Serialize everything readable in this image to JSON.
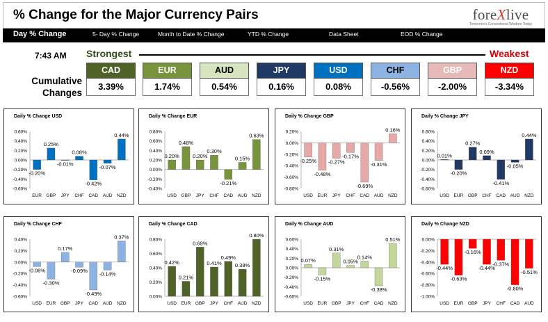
{
  "header": {
    "title": "% Change for the Major Currency Pairs",
    "logo_text_a": "fore",
    "logo_text_x": "X",
    "logo_text_b": "live",
    "logo_tagline": "Tomorrow's Conventional Wisdom Today"
  },
  "nav": {
    "items": [
      "Day % Change",
      "5- Day % Change",
      "Month to Date % Change",
      "YTD % Change",
      "Data Sheet",
      "EOD % Change"
    ]
  },
  "summary": {
    "time": "7:43 AM",
    "strongest_label": "Strongest",
    "weakest_label": "Weakest",
    "cumulative_label": "Cumulative Changes",
    "currencies": [
      {
        "code": "CAD",
        "value": "3.39%",
        "color": "#4f6228",
        "text_color": "#ffffff"
      },
      {
        "code": "EUR",
        "value": "1.74%",
        "color": "#77933c",
        "text_color": "#ffffff"
      },
      {
        "code": "AUD",
        "value": "0.54%",
        "color": "#d7e4bd",
        "text_color": "#000000"
      },
      {
        "code": "JPY",
        "value": "0.16%",
        "color": "#1f3864",
        "text_color": "#ffffff"
      },
      {
        "code": "USD",
        "value": "0.08%",
        "color": "#0070c0",
        "text_color": "#ffffff"
      },
      {
        "code": "CHF",
        "value": "-0.56%",
        "color": "#8db3e2",
        "text_color": "#000000"
      },
      {
        "code": "GBP",
        "value": "-2.00%",
        "color": "#e6b9b8",
        "text_color": "#ffffff"
      },
      {
        "code": "NZD",
        "value": "-3.34%",
        "color": "#ff0000",
        "text_color": "#ffffff"
      }
    ]
  },
  "chart_data": [
    {
      "type": "bar",
      "title": "Daily % Change USD",
      "color": "#0070c0",
      "categories": [
        "EUR",
        "GBP",
        "JPY",
        "CHF",
        "CAD",
        "AUD",
        "NZD"
      ],
      "values": [
        -0.2,
        0.25,
        -0.01,
        0.08,
        -0.42,
        -0.07,
        0.44
      ],
      "labels": [
        "-0.20%",
        "0.25%",
        "-0.01%",
        "0.08%",
        "-0.42%",
        "-0.07%",
        "0.44%"
      ],
      "ylim": [
        -0.6,
        0.6
      ],
      "ticks": [
        "0.60%",
        "0.40%",
        "0.20%",
        "0.00%",
        "-0.20%",
        "-0.40%",
        "-0.60%"
      ]
    },
    {
      "type": "bar",
      "title": "Daily % Change EUR",
      "color": "#77933c",
      "categories": [
        "USD",
        "GBP",
        "JPY",
        "CHF",
        "CAD",
        "AUD",
        "NZD"
      ],
      "values": [
        0.2,
        0.48,
        0.2,
        0.3,
        -0.21,
        0.15,
        0.63
      ],
      "labels": [
        "0.20%",
        "0.48%",
        "0.20%",
        "0.30%",
        "-0.21%",
        "0.15%",
        "0.63%"
      ],
      "ylim": [
        -0.4,
        0.8
      ],
      "ticks": [
        "0.80%",
        "0.60%",
        "0.40%",
        "0.20%",
        "0.00%",
        "-0.20%",
        "-0.40%"
      ]
    },
    {
      "type": "bar",
      "title": "Daily % Change GBP",
      "color": "#e6a9a8",
      "categories": [
        "USD",
        "EUR",
        "JPY",
        "CHF",
        "CAD",
        "AUD",
        "NZD"
      ],
      "values": [
        -0.25,
        -0.48,
        -0.27,
        -0.17,
        -0.69,
        -0.31,
        0.16
      ],
      "labels": [
        "-0.25%",
        "-0.48%",
        "-0.27%",
        "-0.17%",
        "-0.69%",
        "-0.31%",
        "0.16%"
      ],
      "ylim": [
        -0.8,
        0.2
      ],
      "ticks": [
        "0.20%",
        "0.00%",
        "-0.20%",
        "-0.40%",
        "-0.60%",
        "-0.80%"
      ]
    },
    {
      "type": "bar",
      "title": "Daily % Change JPY",
      "color": "#1f3864",
      "categories": [
        "USD",
        "EUR",
        "GBP",
        "CHF",
        "CAD",
        "AUD",
        "NZD"
      ],
      "values": [
        0.01,
        -0.2,
        0.27,
        0.09,
        -0.41,
        -0.05,
        0.44
      ],
      "labels": [
        "0.01%",
        "-0.20%",
        "0.27%",
        "0.09%",
        "-0.41%",
        "-0.05%",
        "0.44%"
      ],
      "ylim": [
        -0.6,
        0.6
      ],
      "ticks": [
        "0.60%",
        "0.40%",
        "0.20%",
        "0.00%",
        "-0.20%",
        "-0.40%",
        "-0.60%"
      ]
    },
    {
      "type": "bar",
      "title": "Daily % Change CHF",
      "color": "#8db3e2",
      "categories": [
        "USD",
        "EUR",
        "GBP",
        "JPY",
        "CAD",
        "AUD",
        "NZD"
      ],
      "values": [
        -0.08,
        -0.3,
        0.17,
        -0.09,
        -0.49,
        -0.14,
        0.37
      ],
      "labels": [
        "-0.08%",
        "-0.30%",
        "0.17%",
        "-0.09%",
        "-0.49%",
        "-0.14%",
        "0.37%"
      ],
      "ylim": [
        -0.6,
        0.4
      ],
      "ticks": [
        "0.40%",
        "0.20%",
        "0.00%",
        "-0.20%",
        "-0.40%",
        "-0.60%"
      ]
    },
    {
      "type": "bar",
      "title": "Daily % Change CAD",
      "color": "#4f6228",
      "categories": [
        "USD",
        "EUR",
        "GBP",
        "JPY",
        "CHF",
        "AUD",
        "NZD"
      ],
      "values": [
        0.42,
        0.21,
        0.69,
        0.41,
        0.49,
        0.38,
        0.8
      ],
      "labels": [
        "0.42%",
        "0.21%",
        "0.69%",
        "0.41%",
        "0.49%",
        "0.38%",
        "0.80%"
      ],
      "ylim": [
        0,
        0.8
      ],
      "ticks": [
        "0.80%",
        "0.60%",
        "0.40%",
        "0.20%",
        "0.00%"
      ]
    },
    {
      "type": "bar",
      "title": "Daily % Change AUD",
      "color": "#c4d79b",
      "categories": [
        "USD",
        "EUR",
        "GBP",
        "JPY",
        "CHF",
        "CAD",
        "NZD"
      ],
      "values": [
        0.07,
        -0.15,
        0.31,
        0.05,
        0.14,
        -0.38,
        0.51
      ],
      "labels": [
        "0.07%",
        "-0.15%",
        "0.31%",
        "0.05%",
        "0.14%",
        "-0.38%",
        "0.51%"
      ],
      "ylim": [
        -0.6,
        0.6
      ],
      "ticks": [
        "0.60%",
        "0.40%",
        "0.20%",
        "0.00%",
        "-0.20%",
        "-0.40%",
        "-0.60%"
      ]
    },
    {
      "type": "bar",
      "title": "Daily % Change NZD",
      "color": "#ff0000",
      "categories": [
        "USD",
        "EUR",
        "GBP",
        "JPY",
        "CHF",
        "CAD",
        "AUD"
      ],
      "values": [
        -0.44,
        -0.63,
        -0.16,
        -0.44,
        -0.37,
        -0.8,
        -0.51
      ],
      "labels": [
        "-0.44%",
        "-0.63%",
        "-0.16%",
        "-0.44%",
        "-0.37%",
        "-0.80%",
        "-0.51%"
      ],
      "ylim": [
        -1.0,
        0.0
      ],
      "ticks": [
        "0.00%",
        "-0.20%",
        "-0.40%",
        "-0.60%",
        "-0.80%",
        "-1.00%"
      ]
    }
  ]
}
